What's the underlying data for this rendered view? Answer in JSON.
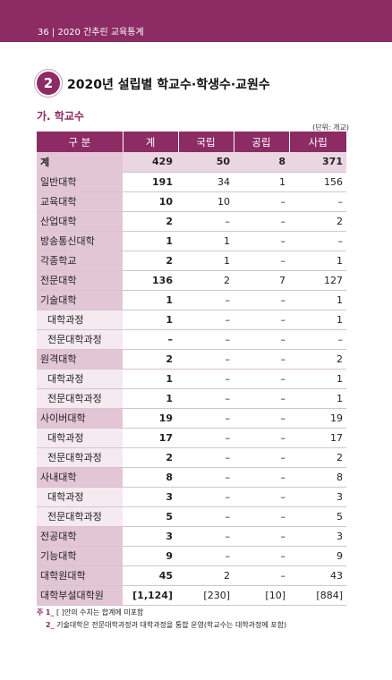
{
  "header": {
    "page_label": "36  |  2020 간추린 교육통계"
  },
  "section": {
    "number": "2",
    "title": "2020년 설립별 학교수·학생수·교원수"
  },
  "subsection": {
    "title": "가. 학교수"
  },
  "unit_label": "(단위: 개교)",
  "table": {
    "columns": [
      "구 분",
      "계",
      "국립",
      "공립",
      "사립"
    ],
    "rows": [
      {
        "label": "계",
        "cells": [
          "429",
          "50",
          "8",
          "371"
        ],
        "level": 0,
        "total": true
      },
      {
        "label": "일반대학",
        "cells": [
          "191",
          "34",
          "1",
          "156"
        ],
        "level": 0
      },
      {
        "label": "교육대학",
        "cells": [
          "10",
          "10",
          "–",
          "–"
        ],
        "level": 0
      },
      {
        "label": "산업대학",
        "cells": [
          "2",
          "–",
          "–",
          "2"
        ],
        "level": 0
      },
      {
        "label": "방송통신대학",
        "cells": [
          "1",
          "1",
          "–",
          "–"
        ],
        "level": 0
      },
      {
        "label": "각종학교",
        "cells": [
          "2",
          "1",
          "–",
          "1"
        ],
        "level": 0
      },
      {
        "label": "전문대학",
        "cells": [
          "136",
          "2",
          "7",
          "127"
        ],
        "level": 0
      },
      {
        "label": "기술대학",
        "cells": [
          "1",
          "–",
          "–",
          "1"
        ],
        "level": 0
      },
      {
        "label": "대학과정",
        "cells": [
          "1",
          "–",
          "–",
          "1"
        ],
        "level": 1
      },
      {
        "label": "전문대학과정",
        "cells": [
          "–",
          "–",
          "–",
          "–"
        ],
        "level": 1
      },
      {
        "label": "원격대학",
        "cells": [
          "2",
          "–",
          "–",
          "2"
        ],
        "level": 0
      },
      {
        "label": "대학과정",
        "cells": [
          "1",
          "–",
          "–",
          "1"
        ],
        "level": 1
      },
      {
        "label": "전문대학과정",
        "cells": [
          "1",
          "–",
          "–",
          "1"
        ],
        "level": 1
      },
      {
        "label": "사이버대학",
        "cells": [
          "19",
          "–",
          "–",
          "19"
        ],
        "level": 0
      },
      {
        "label": "대학과정",
        "cells": [
          "17",
          "–",
          "–",
          "17"
        ],
        "level": 1
      },
      {
        "label": "전문대학과정",
        "cells": [
          "2",
          "–",
          "–",
          "2"
        ],
        "level": 1
      },
      {
        "label": "사내대학",
        "cells": [
          "8",
          "–",
          "–",
          "8"
        ],
        "level": 0
      },
      {
        "label": "대학과정",
        "cells": [
          "3",
          "–",
          "–",
          "3"
        ],
        "level": 1
      },
      {
        "label": "전문대학과정",
        "cells": [
          "5",
          "–",
          "–",
          "5"
        ],
        "level": 1
      },
      {
        "label": "전공대학",
        "cells": [
          "3",
          "–",
          "–",
          "3"
        ],
        "level": 0
      },
      {
        "label": "기능대학",
        "cells": [
          "9",
          "–",
          "–",
          "9"
        ],
        "level": 0
      },
      {
        "label": "대학원대학",
        "cells": [
          "45",
          "2",
          "–",
          "43"
        ],
        "level": 0
      },
      {
        "label": "대학부설대학원",
        "cells": [
          "[1,124]",
          "[230]",
          "[10]",
          "[884]"
        ],
        "level": 0
      }
    ]
  },
  "notes": {
    "prefix": "주",
    "items": [
      {
        "index": "1_",
        "text": "[ ]안의 수치는 합계에 미포함"
      },
      {
        "index": "2_",
        "text": "기술대학은 전문대학과정과 대학과정을 통합 운영(학교수는 대학과정에 포함)"
      }
    ]
  },
  "colors": {
    "accent": "#8c2b64",
    "label_bg": "#e3c6d6",
    "sub_label_bg": "#f4eaf0"
  }
}
